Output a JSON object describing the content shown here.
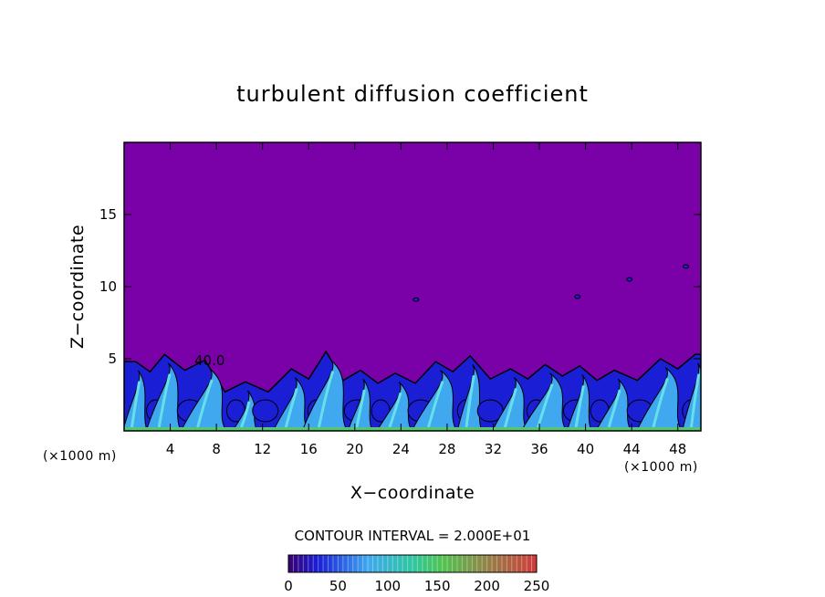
{
  "chart_data": {
    "type": "heatmap",
    "title": "turbulent diffusion coefficient",
    "xlabel": "X−coordinate",
    "ylabel": "Z−coordinate",
    "x_unit_label": "(×1000 m)",
    "x_unit_label_right": "(×1000 m)",
    "xlim": [
      0,
      50
    ],
    "ylim": [
      0,
      20
    ],
    "x_ticks": [
      4,
      8,
      12,
      16,
      20,
      24,
      28,
      32,
      36,
      40,
      44,
      48
    ],
    "y_ticks": [
      5,
      10,
      15
    ],
    "contour_interval_label": "CONTOUR INTERVAL = 2.000E+01",
    "contour_interval": 20,
    "colorbar": {
      "range": [
        0,
        250
      ],
      "ticks": [
        0,
        50,
        100,
        150,
        200,
        250
      ]
    },
    "background_value": 0,
    "turbulent_layer_top_km": 5.5,
    "turbulent_features": [
      {
        "x": 1.0,
        "z": 4.8
      },
      {
        "x": 3.5,
        "z": 5.3
      },
      {
        "x": 7.0,
        "z": 4.9
      },
      {
        "x": 10.5,
        "z": 3.4
      },
      {
        "x": 14.5,
        "z": 4.3
      },
      {
        "x": 17.5,
        "z": 5.5
      },
      {
        "x": 20.5,
        "z": 4.2
      },
      {
        "x": 23.5,
        "z": 4.0
      },
      {
        "x": 27.0,
        "z": 4.8
      },
      {
        "x": 30.0,
        "z": 5.2
      },
      {
        "x": 33.5,
        "z": 4.3
      },
      {
        "x": 36.5,
        "z": 4.6
      },
      {
        "x": 39.5,
        "z": 4.5
      },
      {
        "x": 42.5,
        "z": 4.2
      },
      {
        "x": 46.5,
        "z": 5.0
      },
      {
        "x": 49.5,
        "z": 5.3
      }
    ],
    "isolated_patches": [
      {
        "x": 25.3,
        "z": 9.1
      },
      {
        "x": 43.8,
        "z": 10.5
      },
      {
        "x": 48.7,
        "z": 11.4
      },
      {
        "x": 39.3,
        "z": 9.3
      }
    ],
    "contour_annotation": "40.0",
    "colors": {
      "background": "#7a00a8",
      "low": "#1a1fd6",
      "mid": "#3fa8ef",
      "high": "#66e0e8",
      "peak": "#54c870"
    }
  }
}
